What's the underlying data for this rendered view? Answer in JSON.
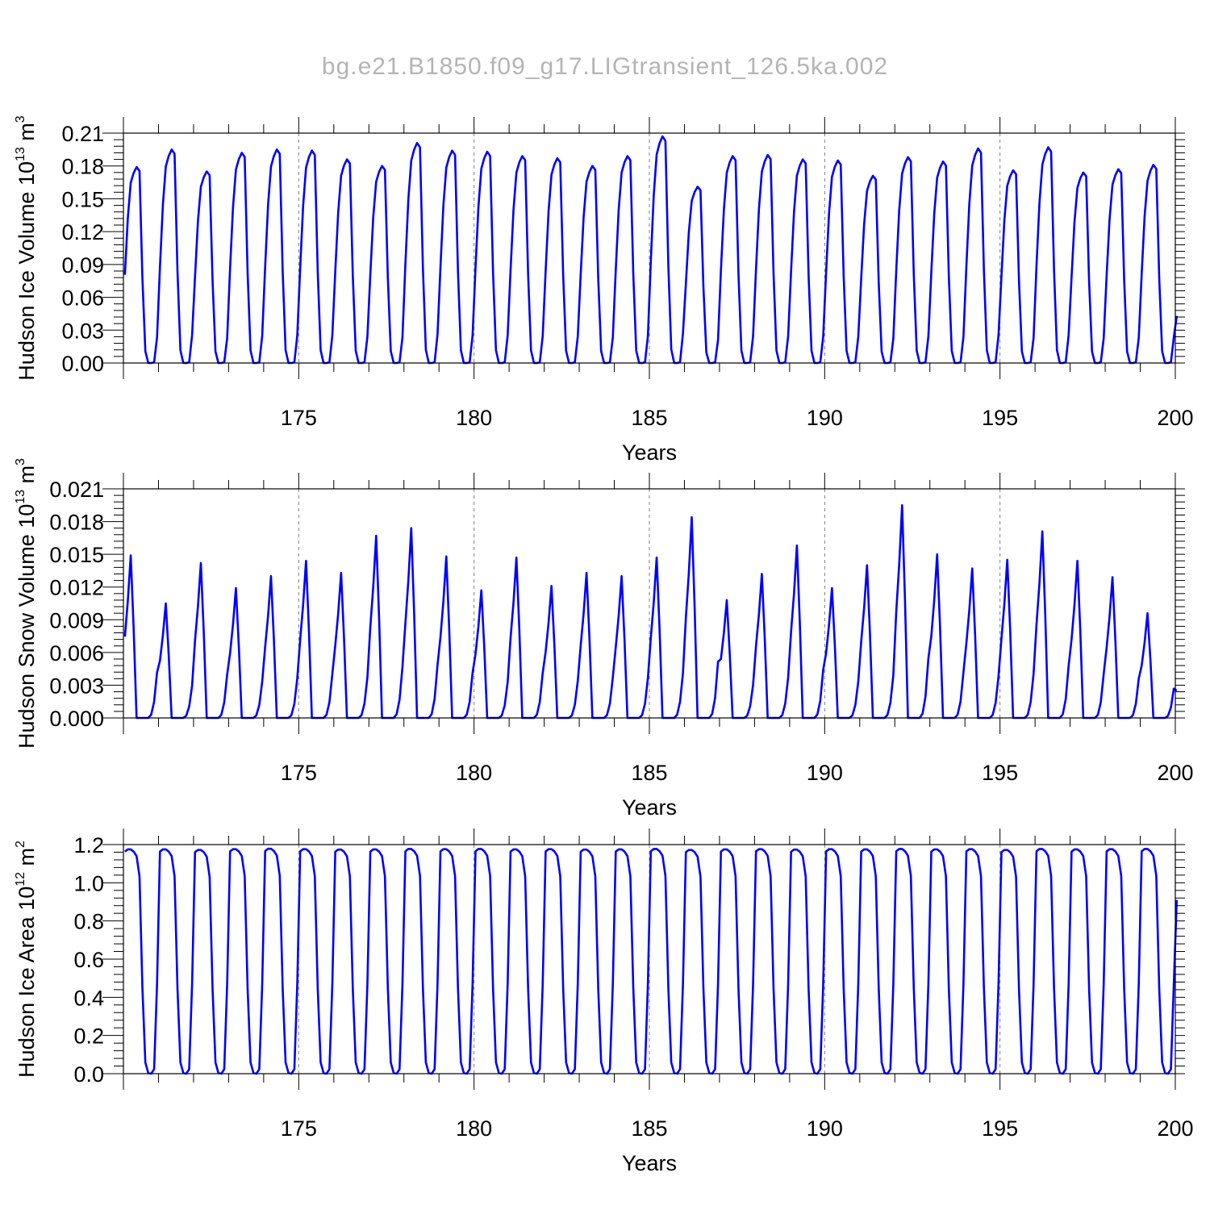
{
  "figure": {
    "title": "bg.e21.B1850.f09_g17.LIGtransient_126.5ka.002"
  },
  "colors": {
    "series": "#0000ff",
    "axes": "#000000",
    "grid": "#7f7f7f",
    "title": "#b4b4b4"
  },
  "chart_data": [
    {
      "type": "line",
      "title": "",
      "xlabel": "Years",
      "ylabel": "Hudson Ice Volume 10",
      "ylabel_exp": "13",
      "ylabel_unit": " m",
      "ylabel_unit_exp": "3",
      "xlim": [
        170,
        200
      ],
      "ylim": [
        0,
        0.21
      ],
      "xticks": [
        175,
        180,
        185,
        190,
        195,
        200
      ],
      "yticks": [
        0.0,
        0.03,
        0.06,
        0.09,
        0.12,
        0.15,
        0.18,
        0.21
      ],
      "ytick_decimals": 2,
      "vertical_gridlines": [
        175,
        180,
        185,
        190,
        195
      ],
      "series": [
        {
          "start_year": 170.042,
          "step_years": 0.08333,
          "peaks": [
            0.179,
            0.195,
            0.175,
            0.192,
            0.195,
            0.194,
            0.186,
            0.18,
            0.201,
            0.194,
            0.193,
            0.189,
            0.187,
            0.18,
            0.189,
            0.207,
            0.161,
            0.189,
            0.19,
            0.186,
            0.185,
            0.171,
            0.188,
            0.184,
            0.196,
            0.176,
            0.197,
            0.174,
            0.177,
            0.181
          ],
          "end_value": 0.043
        }
      ]
    },
    {
      "type": "line",
      "title": "",
      "xlabel": "Years",
      "ylabel": "Hudson Snow Volume 10",
      "ylabel_exp": "13",
      "ylabel_unit": " m",
      "ylabel_unit_exp": "3",
      "xlim": [
        170,
        200
      ],
      "ylim": [
        0,
        0.021
      ],
      "xticks": [
        175,
        180,
        185,
        190,
        195,
        200
      ],
      "yticks": [
        0.0,
        0.003,
        0.006,
        0.009,
        0.012,
        0.015,
        0.018,
        0.021
      ],
      "ytick_decimals": 3,
      "vertical_gridlines": [
        175,
        180,
        185,
        190,
        195
      ],
      "series": [
        {
          "start_year": 170.042,
          "step_years": 0.08333,
          "peaks": [
            0.0149,
            0.0105,
            0.0142,
            0.0119,
            0.013,
            0.0144,
            0.0133,
            0.0167,
            0.0174,
            0.0148,
            0.0117,
            0.0147,
            0.0121,
            0.0133,
            0.013,
            0.0147,
            0.0184,
            0.0108,
            0.0132,
            0.0158,
            0.0119,
            0.014,
            0.0195,
            0.015,
            0.0137,
            0.0145,
            0.0171,
            0.0144,
            0.0129,
            0.0096
          ],
          "end_value": 0.0025
        }
      ]
    },
    {
      "type": "line",
      "title": "",
      "xlabel": "Years",
      "ylabel": "Hudson Ice Area 10",
      "ylabel_exp": "12",
      "ylabel_unit": " m",
      "ylabel_unit_exp": "2",
      "xlim": [
        170,
        200
      ],
      "ylim": [
        0,
        1.2
      ],
      "xticks": [
        175,
        180,
        185,
        190,
        195,
        200
      ],
      "yticks": [
        0.0,
        0.2,
        0.4,
        0.6,
        0.8,
        1.0,
        1.2
      ],
      "ytick_decimals": 1,
      "vertical_gridlines": [
        175,
        180,
        185,
        190,
        195
      ],
      "series": [
        {
          "start_year": 170.042,
          "step_years": 0.08333,
          "peaks": [
            1.175,
            1.175,
            1.172,
            1.176,
            1.178,
            1.176,
            1.174,
            1.175,
            1.177,
            1.176,
            1.177,
            1.175,
            1.176,
            1.174,
            1.175,
            1.177,
            1.172,
            1.175,
            1.176,
            1.174,
            1.176,
            1.175,
            1.177,
            1.175,
            1.176,
            1.172,
            1.177,
            1.175,
            1.176,
            1.177
          ],
          "end_value": 0.91
        }
      ]
    }
  ]
}
